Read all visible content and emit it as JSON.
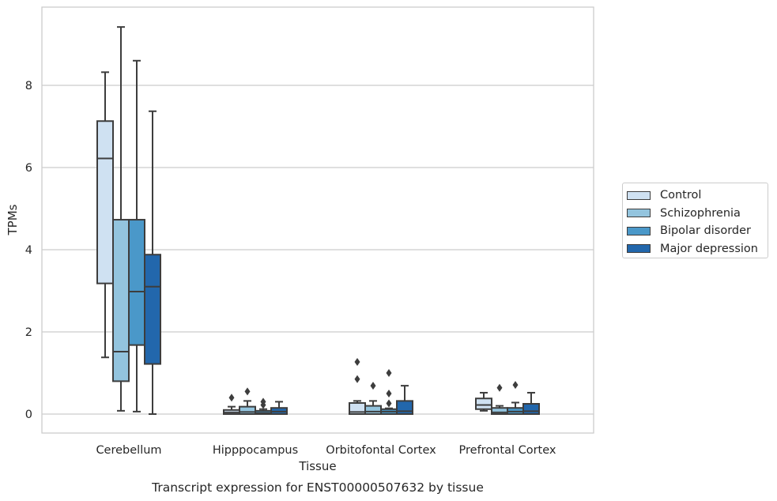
{
  "chart_data": {
    "type": "box",
    "title": "Transcript expression for ENST00000507632 by tissue",
    "xlabel": "Tissue",
    "ylabel": "TPMs",
    "ylim": [
      -0.45,
      9.8
    ],
    "yticks": [
      0,
      2,
      4,
      6,
      8
    ],
    "grid": "horizontal",
    "legend_position": "right",
    "categories": [
      "Cerebellum",
      "Hipppocampus",
      "Orbitofontal Cortex",
      "Prefrontal Cortex"
    ],
    "series": [
      {
        "name": "Control",
        "color": "#cfe1f2",
        "boxes": [
          {
            "whislo": 1.38,
            "q1": 3.18,
            "med": 6.22,
            "q3": 7.13,
            "whishi": 8.32,
            "fliers": []
          },
          {
            "whislo": 0.0,
            "q1": 0.0,
            "med": 0.04,
            "q3": 0.1,
            "whishi": 0.18,
            "fliers": [
              0.4
            ]
          },
          {
            "whislo": 0.0,
            "q1": 0.0,
            "med": 0.05,
            "q3": 0.27,
            "whishi": 0.32,
            "fliers": [
              0.85,
              1.27
            ]
          },
          {
            "whislo": 0.08,
            "q1": 0.12,
            "med": 0.22,
            "q3": 0.38,
            "whishi": 0.52,
            "fliers": []
          }
        ]
      },
      {
        "name": "Schizophrenia",
        "color": "#93c4de",
        "boxes": [
          {
            "whislo": 0.08,
            "q1": 0.8,
            "med": 1.52,
            "q3": 4.73,
            "whishi": 9.42,
            "fliers": []
          },
          {
            "whislo": 0.0,
            "q1": 0.0,
            "med": 0.05,
            "q3": 0.18,
            "whishi": 0.32,
            "fliers": [
              0.55
            ]
          },
          {
            "whislo": 0.0,
            "q1": 0.0,
            "med": 0.06,
            "q3": 0.2,
            "whishi": 0.32,
            "fliers": [
              0.69
            ]
          },
          {
            "whislo": 0.0,
            "q1": 0.0,
            "med": 0.04,
            "q3": 0.15,
            "whishi": 0.2,
            "fliers": [
              0.64
            ]
          }
        ]
      },
      {
        "name": "Bipolar disorder",
        "color": "#4a98c9",
        "boxes": [
          {
            "whislo": 0.06,
            "q1": 1.68,
            "med": 2.98,
            "q3": 4.73,
            "whishi": 8.6,
            "fliers": []
          },
          {
            "whislo": 0.0,
            "q1": 0.0,
            "med": 0.03,
            "q3": 0.08,
            "whishi": 0.12,
            "fliers": [
              0.22,
              0.3
            ]
          },
          {
            "whislo": 0.0,
            "q1": 0.0,
            "med": 0.06,
            "q3": 0.12,
            "whishi": 0.14,
            "fliers": [
              0.26,
              0.5,
              1.0
            ]
          },
          {
            "whislo": 0.0,
            "q1": 0.0,
            "med": 0.06,
            "q3": 0.15,
            "whishi": 0.28,
            "fliers": [
              0.71
            ]
          }
        ]
      },
      {
        "name": "Major depression",
        "color": "#2267ac",
        "boxes": [
          {
            "whislo": 0.0,
            "q1": 1.22,
            "med": 3.1,
            "q3": 3.88,
            "whishi": 7.37,
            "fliers": []
          },
          {
            "whislo": 0.0,
            "q1": 0.0,
            "med": 0.06,
            "q3": 0.15,
            "whishi": 0.3,
            "fliers": []
          },
          {
            "whislo": 0.0,
            "q1": 0.0,
            "med": 0.07,
            "q3": 0.32,
            "whishi": 0.69,
            "fliers": []
          },
          {
            "whislo": 0.0,
            "q1": 0.0,
            "med": 0.07,
            "q3": 0.25,
            "whishi": 0.52,
            "fliers": []
          }
        ]
      }
    ]
  }
}
